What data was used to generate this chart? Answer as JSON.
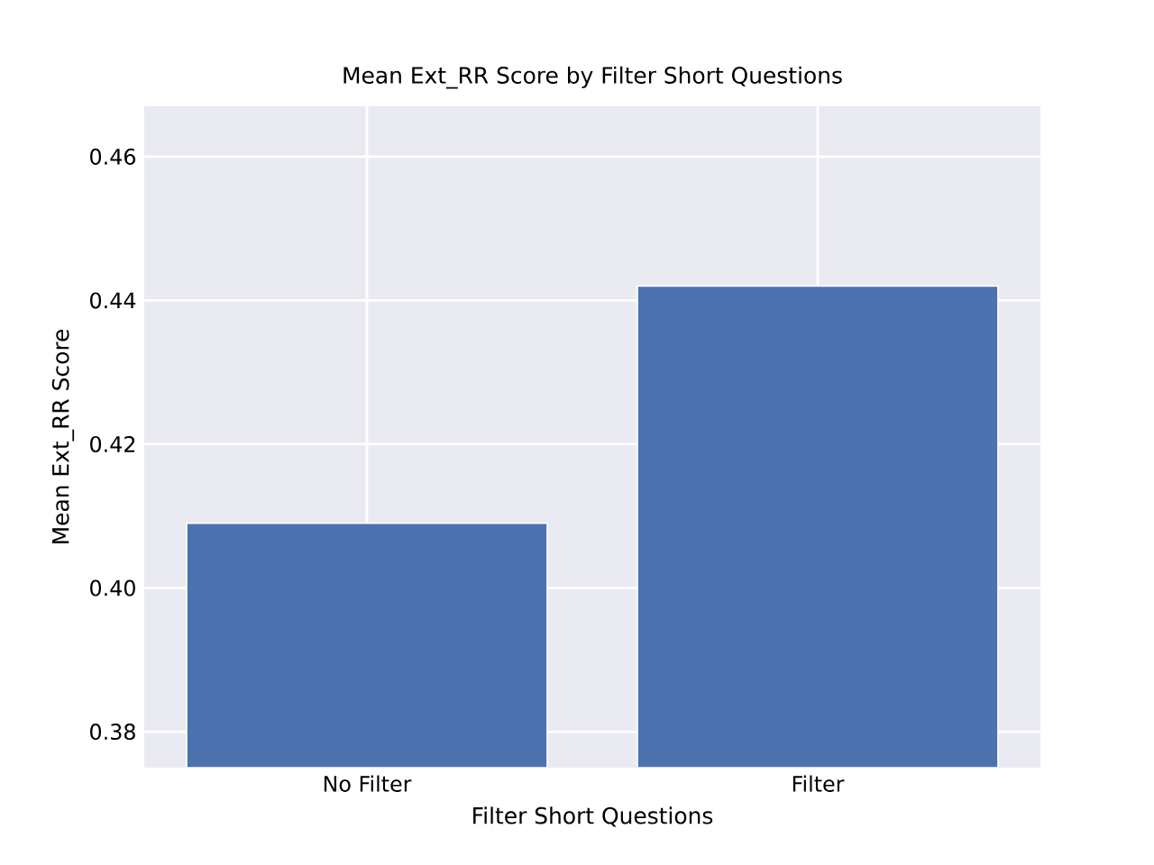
{
  "chart_data": {
    "type": "bar",
    "title": "Mean Ext_RR Score by Filter Short Questions",
    "xlabel": "Filter Short Questions",
    "ylabel": "Mean Ext_RR Score",
    "categories": [
      "No Filter",
      "Filter"
    ],
    "values": [
      0.409,
      0.442
    ],
    "color": "#4c72b0",
    "ylim": [
      0.375,
      0.467
    ],
    "yticks": [
      0.38,
      {
        "value": 0.4,
        "label": "0.40"
      },
      0.42,
      0.44,
      0.46
    ],
    "grid": true
  }
}
